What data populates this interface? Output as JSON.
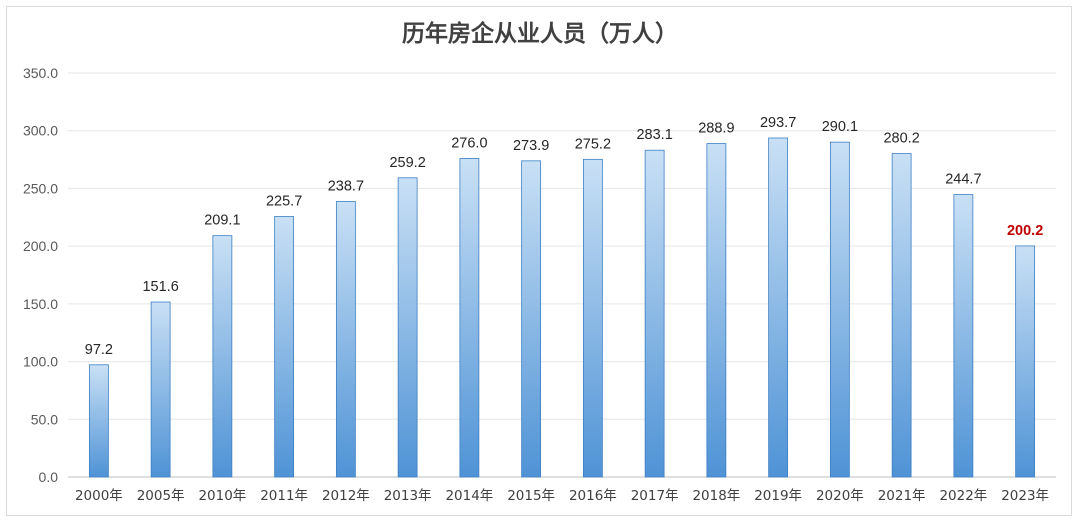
{
  "chart_data": {
    "type": "bar",
    "title": "历年房企从业人员（万人）",
    "xlabel": "",
    "ylabel": "",
    "ylim": [
      0,
      350
    ],
    "yticks": [
      "0.0",
      "50.0",
      "100.0",
      "150.0",
      "200.0",
      "250.0",
      "300.0",
      "350.0"
    ],
    "grid": true,
    "categories": [
      "2000年",
      "2005年",
      "2010年",
      "2011年",
      "2012年",
      "2013年",
      "2014年",
      "2015年",
      "2016年",
      "2017年",
      "2018年",
      "2019年",
      "2020年",
      "2021年",
      "2022年",
      "2023年"
    ],
    "values": [
      97.2,
      151.6,
      209.1,
      225.7,
      238.7,
      259.2,
      276.0,
      273.9,
      275.2,
      283.1,
      288.9,
      293.7,
      290.1,
      280.2,
      244.7,
      200.2
    ],
    "value_labels": [
      "97.2",
      "151.6",
      "209.1",
      "225.7",
      "238.7",
      "259.2",
      "276.0",
      "273.9",
      "275.2",
      "283.1",
      "288.9",
      "293.7",
      "290.1",
      "280.2",
      "244.7",
      "200.2"
    ],
    "highlight_index": 15,
    "colors": {
      "bar_top": "#c9e0f5",
      "bar_bottom": "#4f93d6",
      "bar_stroke": "#3d7fc4",
      "grid": "#e6e6e6",
      "highlight_label": "#c00000"
    }
  }
}
